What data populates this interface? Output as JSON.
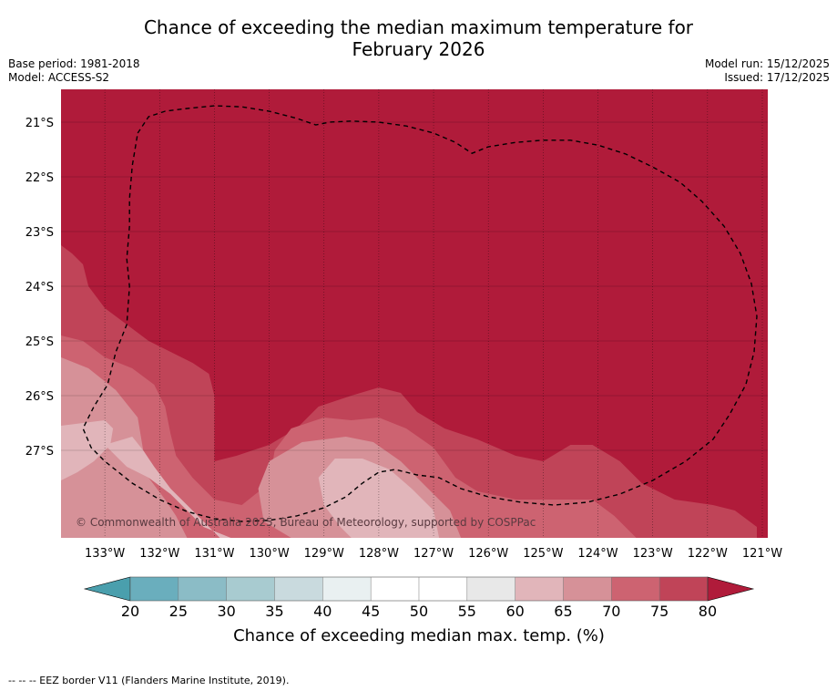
{
  "title_line1": "Chance of exceeding the median maximum temperature for",
  "title_line2": "February 2026",
  "base_period": "Base period: 1981-2018",
  "model": "Model: ACCESS-S2",
  "model_run": "Model run: 15/12/2025",
  "issued": "Issued: 17/12/2025",
  "copyright": "© Commonwealth of Australia 2025, Bureau of Meteorology, supported by COSPPac",
  "footnote": "--  --  -- EEZ border V11 (Flanders Marine Institute, 2019).",
  "map": {
    "lon_range": [
      -133.8,
      -120.9
    ],
    "lat_range": [
      -28.6,
      -20.4
    ],
    "lon_ticks": [
      {
        "value": -133,
        "label": "133°W"
      },
      {
        "value": -132,
        "label": "132°W"
      },
      {
        "value": -131,
        "label": "131°W"
      },
      {
        "value": -130,
        "label": "130°W"
      },
      {
        "value": -129,
        "label": "129°W"
      },
      {
        "value": -128,
        "label": "128°W"
      },
      {
        "value": -127,
        "label": "127°W"
      },
      {
        "value": -126,
        "label": "126°W"
      },
      {
        "value": -125,
        "label": "125°W"
      },
      {
        "value": -124,
        "label": "124°W"
      },
      {
        "value": -123,
        "label": "123°W"
      },
      {
        "value": -122,
        "label": "122°W"
      },
      {
        "value": -121,
        "label": "121°W"
      }
    ],
    "lat_ticks": [
      {
        "value": -21,
        "label": "21°S"
      },
      {
        "value": -22,
        "label": "22°S"
      },
      {
        "value": -23,
        "label": "23°S"
      },
      {
        "value": -24,
        "label": "24°S"
      },
      {
        "value": -25,
        "label": "25°S"
      },
      {
        "value": -26,
        "label": "26°S"
      },
      {
        "value": -27,
        "label": "27°S"
      }
    ],
    "background_class": "80+",
    "contour_bands": [
      {
        "name": "band-75-80",
        "class": "75-80",
        "color": "#c04458",
        "polygon": [
          [
            -133.8,
            -23.25
          ],
          [
            -133.6,
            -23.4
          ],
          [
            -133.4,
            -23.6
          ],
          [
            -133.3,
            -24.0
          ],
          [
            -133.0,
            -24.4
          ],
          [
            -132.6,
            -24.7
          ],
          [
            -132.2,
            -25.0
          ],
          [
            -131.8,
            -25.2
          ],
          [
            -131.4,
            -25.4
          ],
          [
            -131.1,
            -25.6
          ],
          [
            -131.0,
            -26.0
          ],
          [
            -131.0,
            -26.5
          ],
          [
            -131.0,
            -27.2
          ],
          [
            -130.6,
            -27.1
          ],
          [
            -130.0,
            -26.9
          ],
          [
            -129.5,
            -26.6
          ],
          [
            -129.1,
            -26.2
          ],
          [
            -128.5,
            -26.0
          ],
          [
            -128.0,
            -25.85
          ],
          [
            -127.6,
            -25.95
          ],
          [
            -127.3,
            -26.3
          ],
          [
            -126.8,
            -26.6
          ],
          [
            -126.2,
            -26.8
          ],
          [
            -125.5,
            -27.1
          ],
          [
            -125.0,
            -27.2
          ],
          [
            -124.5,
            -26.9
          ],
          [
            -124.1,
            -26.9
          ],
          [
            -123.6,
            -27.2
          ],
          [
            -123.2,
            -27.6
          ],
          [
            -122.6,
            -27.9
          ],
          [
            -121.9,
            -28.0
          ],
          [
            -121.5,
            -28.1
          ],
          [
            -121.1,
            -28.4
          ],
          [
            -121.1,
            -28.6
          ],
          [
            -133.8,
            -28.6
          ]
        ]
      },
      {
        "name": "band-70-75",
        "class": "70-75",
        "color": "#cd6371",
        "polygon": [
          [
            -133.8,
            -24.9
          ],
          [
            -133.4,
            -25.0
          ],
          [
            -133.0,
            -25.3
          ],
          [
            -132.5,
            -25.5
          ],
          [
            -132.1,
            -25.8
          ],
          [
            -131.9,
            -26.2
          ],
          [
            -131.8,
            -26.7
          ],
          [
            -131.7,
            -27.1
          ],
          [
            -131.4,
            -27.5
          ],
          [
            -131.0,
            -27.9
          ],
          [
            -130.5,
            -28.0
          ],
          [
            -130.0,
            -27.6
          ],
          [
            -129.9,
            -27.0
          ],
          [
            -129.6,
            -26.6
          ],
          [
            -129.0,
            -26.4
          ],
          [
            -128.5,
            -26.45
          ],
          [
            -128.0,
            -26.4
          ],
          [
            -127.5,
            -26.6
          ],
          [
            -127.0,
            -26.95
          ],
          [
            -126.6,
            -27.5
          ],
          [
            -126.2,
            -27.75
          ],
          [
            -125.5,
            -27.9
          ],
          [
            -124.8,
            -27.9
          ],
          [
            -124.1,
            -27.9
          ],
          [
            -123.7,
            -28.2
          ],
          [
            -123.3,
            -28.6
          ],
          [
            -133.8,
            -28.6
          ]
        ]
      },
      {
        "name": "band-65-70",
        "class": "65-70",
        "color": "#d69198",
        "polygon": [
          [
            -133.8,
            -25.3
          ],
          [
            -133.3,
            -25.5
          ],
          [
            -132.8,
            -25.9
          ],
          [
            -132.4,
            -26.4
          ],
          [
            -132.3,
            -27.0
          ],
          [
            -132.2,
            -27.5
          ],
          [
            -131.9,
            -27.9
          ],
          [
            -131.7,
            -28.2
          ],
          [
            -131.5,
            -28.6
          ],
          [
            -129.6,
            -28.6
          ],
          [
            -130.1,
            -28.3
          ],
          [
            -130.2,
            -27.7
          ],
          [
            -130.0,
            -27.2
          ],
          [
            -129.4,
            -26.85
          ],
          [
            -128.6,
            -26.75
          ],
          [
            -128.1,
            -26.85
          ],
          [
            -127.6,
            -27.2
          ],
          [
            -127.1,
            -27.7
          ],
          [
            -126.7,
            -28.1
          ],
          [
            -126.5,
            -28.6
          ],
          [
            -133.8,
            -28.6
          ]
        ]
      },
      {
        "name": "band-60-65",
        "class": "60-65",
        "color": "#e1b5ba",
        "polygon": [
          [
            -133.8,
            -26.6
          ],
          [
            -133.4,
            -26.55
          ],
          [
            -133.1,
            -26.8
          ],
          [
            -132.9,
            -27.0
          ],
          [
            -132.6,
            -27.3
          ],
          [
            -132.2,
            -27.5
          ],
          [
            -131.8,
            -27.8
          ],
          [
            -131.5,
            -28.1
          ],
          [
            -131.2,
            -28.4
          ],
          [
            -130.7,
            -28.6
          ],
          [
            -126.9,
            -28.6
          ],
          [
            -127.0,
            -28.1
          ],
          [
            -127.4,
            -27.7
          ],
          [
            -127.8,
            -27.35
          ],
          [
            -128.3,
            -27.15
          ],
          [
            -128.8,
            -27.15
          ],
          [
            -129.1,
            -27.5
          ],
          [
            -129.0,
            -28.0
          ],
          [
            -128.7,
            -28.4
          ],
          [
            -128.5,
            -28.6
          ],
          [
            -130.9,
            -28.6
          ],
          [
            -131.2,
            -28.3
          ],
          [
            -131.5,
            -28.0
          ],
          [
            -131.8,
            -27.7
          ],
          [
            -132.1,
            -27.3
          ],
          [
            -132.3,
            -27.0
          ],
          [
            -132.5,
            -26.75
          ],
          [
            -133.0,
            -26.9
          ],
          [
            -133.4,
            -27.1
          ],
          [
            -133.8,
            -27.2
          ]
        ]
      },
      {
        "name": "band-60-65-sw",
        "class": "60-65",
        "color": "#e1b5ba",
        "polygon": [
          [
            -133.8,
            -26.55
          ],
          [
            -133.0,
            -26.45
          ],
          [
            -132.85,
            -26.6
          ],
          [
            -132.9,
            -26.9
          ],
          [
            -133.2,
            -27.2
          ],
          [
            -133.5,
            -27.4
          ],
          [
            -133.8,
            -27.55
          ]
        ]
      }
    ],
    "eez_border": [
      [
        -132.4,
        -21.2
      ],
      [
        -132.2,
        -20.9
      ],
      [
        -131.9,
        -20.8
      ],
      [
        -131.5,
        -20.75
      ],
      [
        -131.0,
        -20.7
      ],
      [
        -130.5,
        -20.72
      ],
      [
        -130.0,
        -20.8
      ],
      [
        -129.5,
        -20.93
      ],
      [
        -129.15,
        -21.05
      ],
      [
        -128.9,
        -21.0
      ],
      [
        -128.5,
        -20.98
      ],
      [
        -128.0,
        -21.0
      ],
      [
        -127.5,
        -21.07
      ],
      [
        -127.0,
        -21.2
      ],
      [
        -126.6,
        -21.37
      ],
      [
        -126.3,
        -21.57
      ],
      [
        -126.0,
        -21.45
      ],
      [
        -125.5,
        -21.37
      ],
      [
        -125.0,
        -21.33
      ],
      [
        -124.5,
        -21.33
      ],
      [
        -124.0,
        -21.42
      ],
      [
        -123.5,
        -21.58
      ],
      [
        -123.0,
        -21.82
      ],
      [
        -122.5,
        -22.1
      ],
      [
        -122.1,
        -22.45
      ],
      [
        -121.7,
        -22.9
      ],
      [
        -121.4,
        -23.4
      ],
      [
        -121.2,
        -23.95
      ],
      [
        -121.1,
        -24.55
      ],
      [
        -121.15,
        -25.2
      ],
      [
        -121.3,
        -25.8
      ],
      [
        -121.6,
        -26.35
      ],
      [
        -121.9,
        -26.8
      ],
      [
        -122.4,
        -27.2
      ],
      [
        -123.0,
        -27.55
      ],
      [
        -123.6,
        -27.8
      ],
      [
        -124.2,
        -27.95
      ],
      [
        -124.8,
        -28.0
      ],
      [
        -125.4,
        -27.95
      ],
      [
        -126.0,
        -27.85
      ],
      [
        -126.5,
        -27.7
      ],
      [
        -126.9,
        -27.5
      ],
      [
        -127.3,
        -27.45
      ],
      [
        -127.7,
        -27.35
      ],
      [
        -128.0,
        -27.4
      ],
      [
        -128.3,
        -27.6
      ],
      [
        -128.6,
        -27.85
      ],
      [
        -129.0,
        -28.05
      ],
      [
        -129.5,
        -28.2
      ],
      [
        -130.0,
        -28.28
      ],
      [
        -130.5,
        -28.3
      ],
      [
        -131.0,
        -28.25
      ],
      [
        -131.5,
        -28.12
      ],
      [
        -132.0,
        -27.9
      ],
      [
        -132.5,
        -27.6
      ],
      [
        -133.0,
        -27.2
      ],
      [
        -133.25,
        -26.95
      ],
      [
        -133.4,
        -26.6
      ],
      [
        -133.2,
        -26.2
      ],
      [
        -132.95,
        -25.8
      ],
      [
        -132.8,
        -25.2
      ],
      [
        -132.6,
        -24.7
      ],
      [
        -132.55,
        -24.0
      ],
      [
        -132.6,
        -23.5
      ],
      [
        -132.55,
        -22.9
      ],
      [
        -132.55,
        -22.4
      ],
      [
        -132.5,
        -21.8
      ],
      [
        -132.4,
        -21.2
      ]
    ]
  },
  "colorbar": {
    "title": "Chance of exceeding median max. temp. (%)",
    "low_extend_color": "#4a9fad",
    "high_extend_color": "#b01b3a",
    "segments": [
      {
        "from": 20,
        "to": 25,
        "color": "#6aaebd"
      },
      {
        "from": 25,
        "to": 30,
        "color": "#8bbcc6"
      },
      {
        "from": 30,
        "to": 35,
        "color": "#a8cbd0"
      },
      {
        "from": 35,
        "to": 40,
        "color": "#c9dade"
      },
      {
        "from": 40,
        "to": 45,
        "color": "#e9f0f1"
      },
      {
        "from": 45,
        "to": 50,
        "color": "#ffffff"
      },
      {
        "from": 50,
        "to": 55,
        "color": "#ffffff"
      },
      {
        "from": 55,
        "to": 60,
        "color": "#e8e8e8"
      },
      {
        "from": 60,
        "to": 65,
        "color": "#e1b5ba"
      },
      {
        "from": 65,
        "to": 70,
        "color": "#d69198"
      },
      {
        "from": 70,
        "to": 75,
        "color": "#cd6371"
      },
      {
        "from": 75,
        "to": 80,
        "color": "#c04458"
      }
    ],
    "tick_labels": [
      "20",
      "25",
      "30",
      "35",
      "40",
      "45",
      "50",
      "55",
      "60",
      "65",
      "70",
      "75",
      "80"
    ]
  }
}
